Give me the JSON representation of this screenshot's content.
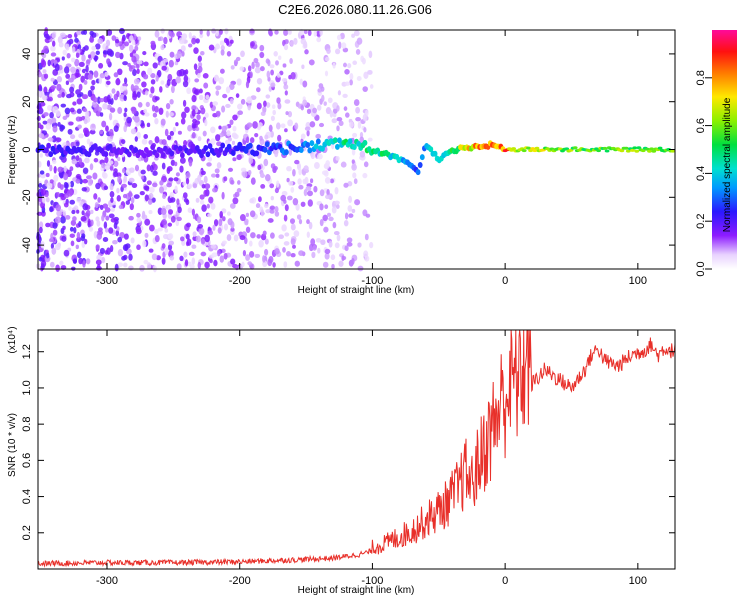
{
  "figure_title": "C2E6.2026.080.11.26.G06",
  "chart_data": [
    {
      "type": "heatmap",
      "title": "C2E6.2026.080.11.26.G06",
      "xlabel": "Height of straight line (km)",
      "ylabel": "Frequency (Hz)",
      "xlim": [
        -352,
        128
      ],
      "ylim": [
        -50,
        50
      ],
      "xticks": [
        -300,
        -200,
        -100,
        0,
        100
      ],
      "xtick_labels": [
        "-300",
        "-200",
        "-100",
        "0",
        "100"
      ],
      "yticks": [
        -40,
        -20,
        0,
        20,
        40
      ],
      "ytick_labels": [
        "-40",
        "-20",
        "0",
        "20",
        "40"
      ],
      "colorbar": {
        "label": "Normalized spectral amplitude",
        "range": [
          0,
          1
        ],
        "ticks": [
          0,
          0.2,
          0.4,
          0.6,
          0.8
        ],
        "tick_labels": [
          "0.0",
          "0.2",
          "0.4",
          "0.6",
          "0.8"
        ],
        "colormap": "rainbow (white-violet-blue-cyan-green-yellow-red-magenta)"
      },
      "main_line": {
        "description": "Dominant spectral line: noisy at low heights, tightening to a strong near-0 Hz line above about 0 km",
        "x": [
          -352,
          -300,
          -250,
          -200,
          -150,
          -120,
          -100,
          -80,
          -65,
          -60,
          -50,
          -40,
          -30,
          -20,
          -10,
          0,
          10,
          50,
          128
        ],
        "freq_hz": [
          0,
          0,
          -1,
          0,
          1,
          3,
          0,
          -4,
          -9,
          2,
          -4,
          -1,
          1,
          1,
          2,
          0,
          0,
          0,
          0
        ],
        "amplitude": [
          0.25,
          0.2,
          0.2,
          0.25,
          0.35,
          0.5,
          0.55,
          0.45,
          0.3,
          0.4,
          0.45,
          0.55,
          0.75,
          0.85,
          0.9,
          0.9,
          0.75,
          0.65,
          0.65
        ]
      },
      "noise_extent_km": [
        -352,
        -100
      ]
    },
    {
      "type": "line",
      "xlabel": "Height of straight line (km)",
      "ylabel": "SNR (10 * v/v)",
      "y_scale_label": "(x10⁴)",
      "xlim": [
        -352,
        128
      ],
      "ylim": [
        0,
        1.32
      ],
      "xticks": [
        -300,
        -200,
        -100,
        0,
        100
      ],
      "xtick_labels": [
        "-300",
        "-200",
        "-100",
        "0",
        "100"
      ],
      "yticks": [
        0.2,
        0.4,
        0.6,
        0.8,
        1.0,
        1.2
      ],
      "ytick_labels": [
        "0.2",
        "0.4",
        "0.6",
        "0.8",
        "1.0",
        "1.2"
      ],
      "series": [
        {
          "name": "SNR",
          "color": "#e8302a",
          "x": [
            -352,
            -300,
            -250,
            -200,
            -160,
            -130,
            -110,
            -90,
            -70,
            -55,
            -45,
            -35,
            -30,
            -25,
            -20,
            -10,
            0,
            10,
            20,
            25,
            30,
            40,
            50,
            60,
            65,
            70,
            75,
            85,
            95,
            105,
            110,
            115,
            120,
            128
          ],
          "y": [
            0.03,
            0.035,
            0.035,
            0.04,
            0.05,
            0.06,
            0.08,
            0.12,
            0.18,
            0.25,
            0.3,
            0.38,
            0.45,
            0.4,
            0.5,
            0.65,
            0.82,
            0.92,
            1.02,
            1.06,
            1.1,
            1.05,
            1.0,
            1.1,
            1.18,
            1.22,
            1.15,
            1.12,
            1.18,
            1.21,
            1.24,
            1.18,
            1.22,
            1.2
          ]
        }
      ]
    }
  ]
}
